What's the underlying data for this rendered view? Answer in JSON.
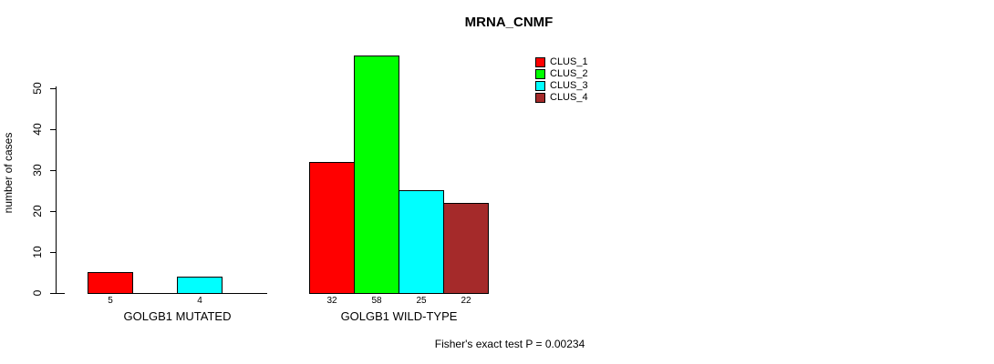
{
  "chart_data": {
    "type": "bar",
    "title": "MRNA_CNMF",
    "xlabel": "",
    "ylabel": "number of cases",
    "ylim": [
      0,
      50
    ],
    "yticks": [
      0,
      10,
      20,
      30,
      40,
      50
    ],
    "grid": false,
    "legend_position": "top-right",
    "categories": [
      "GOLGB1 MUTATED",
      "GOLGB1 WILD-TYPE"
    ],
    "series": [
      {
        "name": "CLUS_1",
        "color": "#ff0000",
        "values": [
          5,
          32
        ]
      },
      {
        "name": "CLUS_2",
        "color": "#00ff00",
        "values": [
          0,
          58
        ]
      },
      {
        "name": "CLUS_3",
        "color": "#00ffff",
        "values": [
          4,
          25
        ]
      },
      {
        "name": "CLUS_4",
        "color": "#a52a2a",
        "values": [
          0,
          22
        ]
      }
    ],
    "bar_value_labels": [
      [
        "5",
        "",
        "4",
        ""
      ],
      [
        "32",
        "58",
        "25",
        "22"
      ]
    ],
    "annotation": "Fisher's exact test P = 0.00234"
  },
  "colors": {
    "axis": "#000000",
    "background": "#ffffff"
  }
}
